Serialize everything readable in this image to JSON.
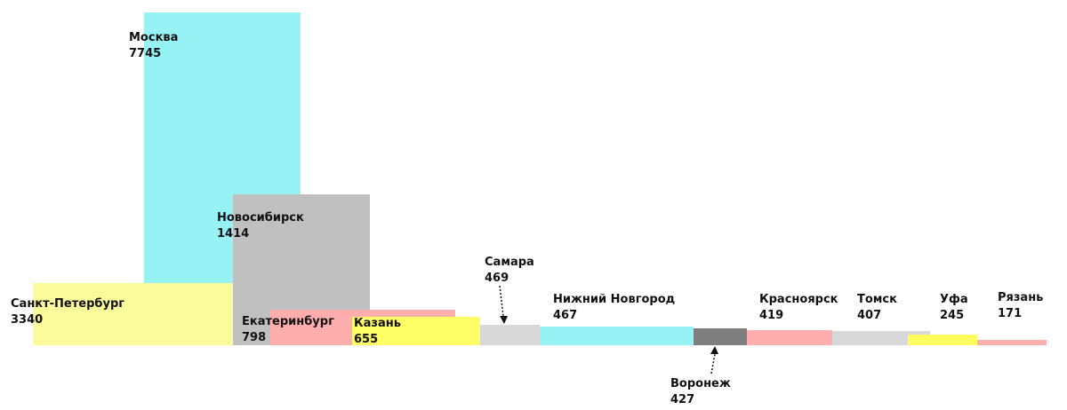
{
  "chart_data": {
    "type": "bar",
    "subtype": "overlapping-area-columns",
    "title": "",
    "xlabel": "",
    "ylabel": "",
    "grid": false,
    "legend": "none",
    "categories": [
      "Санкт-Петербург",
      "Москва",
      "Новосибирск",
      "Екатеринбург",
      "Казань",
      "Самара",
      "Нижний Новгород",
      "Воронеж",
      "Красноярск",
      "Томск",
      "Уфа",
      "Рязань"
    ],
    "values": [
      3340,
      7745,
      1414,
      798,
      655,
      469,
      467,
      427,
      419,
      407,
      245,
      171
    ],
    "colors": [
      "#fbfb9b",
      "#97f2f6",
      "#c0c0c0",
      "#ffadad",
      "#fefe66",
      "#d8d8d8",
      "#97f2f6",
      "#7f7f7f",
      "#ffadad",
      "#d8d8d8",
      "#fefe5f",
      "#ffadad"
    ],
    "bars": [
      {
        "name": "Санкт-Петербург",
        "label": "Санкт-Петербург",
        "value": 3340,
        "value_text": "3340",
        "color": "#fbfb9b"
      },
      {
        "name": "Москва",
        "label": "Москва",
        "value": 7745,
        "value_text": "7745",
        "color": "#97f2f6"
      },
      {
        "name": "Новосибирск",
        "label": "Новосибирск",
        "value": 1414,
        "value_text": "1414",
        "color": "#c0c0c0"
      },
      {
        "name": "Екатеринбург",
        "label": "Екатеринбург",
        "value": 798,
        "value_text": "798",
        "color": "#ffadad"
      },
      {
        "name": "Казань",
        "label": "Казань",
        "value": 655,
        "value_text": "655",
        "color": "#fefe66"
      },
      {
        "name": "Самара",
        "label": "Самара",
        "value": 469,
        "value_text": "469",
        "color": "#d8d8d8"
      },
      {
        "name": "Нижний Новгород",
        "label": "Нижний Новгород",
        "value": 467,
        "value_text": "467",
        "color": "#97f2f6"
      },
      {
        "name": "Воронеж",
        "label": "Воронеж",
        "value": 427,
        "value_text": "427",
        "color": "#7f7f7f"
      },
      {
        "name": "Красноярск",
        "label": "Красноярск",
        "value": 419,
        "value_text": "419",
        "color": "#ffadad"
      },
      {
        "name": "Томск",
        "label": "Томск",
        "value": 407,
        "value_text": "407",
        "color": "#d8d8d8"
      },
      {
        "name": "Уфа",
        "label": "Уфа",
        "value": 245,
        "value_text": "245",
        "color": "#fefe5f"
      },
      {
        "name": "Рязань",
        "label": "Рязань",
        "value": 171,
        "value_text": "171",
        "color": "#ffadad"
      }
    ]
  }
}
